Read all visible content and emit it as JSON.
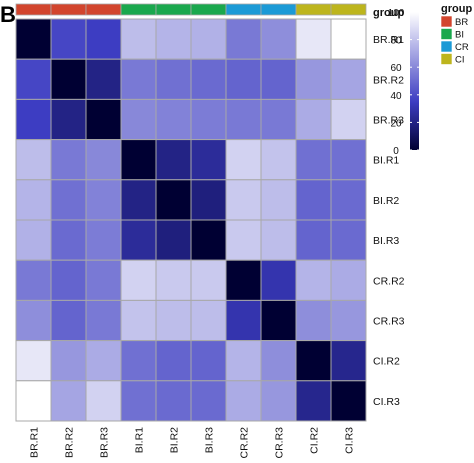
{
  "panel_label": "B",
  "colors": {
    "scale_low": "#000033",
    "scale_mid": "#3d3dc2",
    "scale_high": "#ffffff",
    "cell_border": "#a8a8a8"
  },
  "chart_data": {
    "type": "heatmap",
    "rows": [
      "BR.R1",
      "BR.R2",
      "BR.R3",
      "BI.R1",
      "BI.R2",
      "BI.R3",
      "CR.R2",
      "CR.R3",
      "CI.R2",
      "CI.R3"
    ],
    "columns": [
      "BR.R1",
      "BR.R2",
      "BR.R3",
      "BI.R1",
      "BI.R2",
      "BI.R3",
      "CR.R2",
      "CR.R3",
      "CI.R2",
      "CI.R3"
    ],
    "values": [
      [
        0,
        38,
        35,
        78,
        75,
        74,
        55,
        62,
        92,
        100
      ],
      [
        38,
        0,
        20,
        55,
        52,
        50,
        48,
        48,
        65,
        70
      ],
      [
        35,
        20,
        0,
        60,
        58,
        56,
        55,
        55,
        72,
        85
      ],
      [
        78,
        55,
        60,
        0,
        20,
        25,
        85,
        80,
        52,
        52
      ],
      [
        75,
        52,
        58,
        20,
        0,
        18,
        82,
        78,
        48,
        50
      ],
      [
        74,
        50,
        56,
        25,
        18,
        0,
        82,
        78,
        48,
        50
      ],
      [
        55,
        48,
        55,
        85,
        82,
        82,
        0,
        30,
        75,
        72
      ],
      [
        62,
        48,
        55,
        80,
        78,
        78,
        30,
        0,
        62,
        65
      ],
      [
        92,
        65,
        72,
        52,
        48,
        48,
        75,
        62,
        0,
        22
      ],
      [
        100,
        70,
        85,
        52,
        50,
        50,
        72,
        65,
        22,
        0
      ]
    ],
    "group_annotation": {
      "title": "group",
      "levels": [
        {
          "name": "BR",
          "color": "#d2452d"
        },
        {
          "name": "BI",
          "color": "#1aa84d"
        },
        {
          "name": "CR",
          "color": "#1b9ad6"
        },
        {
          "name": "CI",
          "color": "#bdb51d"
        }
      ],
      "columns": [
        "BR",
        "BR",
        "BR",
        "BI",
        "BI",
        "BI",
        "CR",
        "CR",
        "CI",
        "CI"
      ]
    },
    "color_scale": {
      "min": 0,
      "max": 100,
      "ticks": [
        0,
        20,
        40,
        60,
        80,
        100
      ]
    },
    "legend_placement": "right",
    "grid": true
  }
}
